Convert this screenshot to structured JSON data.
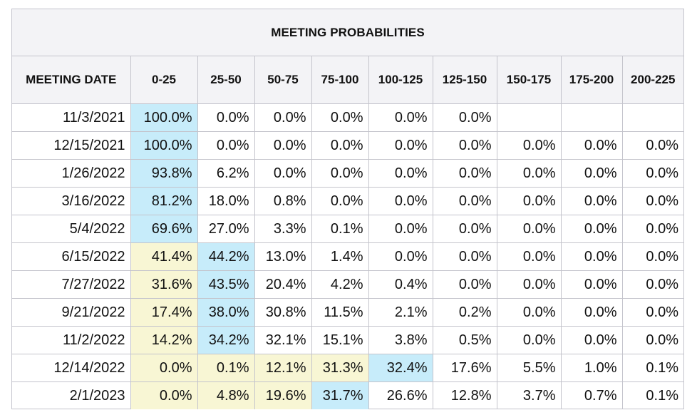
{
  "title": "MEETING PROBABILITIES",
  "colors": {
    "highlight_blue": "#c7ecfa",
    "highlight_yellow": "#f8f6d4",
    "header_background": "#f3f3f6"
  },
  "chart_data": {
    "type": "table",
    "title": "MEETING PROBABILITIES",
    "columns": [
      "MEETING DATE",
      "0-25",
      "25-50",
      "50-75",
      "75-100",
      "100-125",
      "125-150",
      "150-175",
      "175-200",
      "200-225"
    ],
    "rows": [
      {
        "date": "11/3/2021",
        "values": [
          "100.0%",
          "0.0%",
          "0.0%",
          "0.0%",
          "0.0%",
          "0.0%",
          "",
          "",
          ""
        ],
        "hl": [
          "b",
          "",
          "",
          "",
          "",
          "",
          "",
          "",
          ""
        ]
      },
      {
        "date": "12/15/2021",
        "values": [
          "100.0%",
          "0.0%",
          "0.0%",
          "0.0%",
          "0.0%",
          "0.0%",
          "0.0%",
          "0.0%",
          "0.0%"
        ],
        "hl": [
          "b",
          "",
          "",
          "",
          "",
          "",
          "",
          "",
          ""
        ]
      },
      {
        "date": "1/26/2022",
        "values": [
          "93.8%",
          "6.2%",
          "0.0%",
          "0.0%",
          "0.0%",
          "0.0%",
          "0.0%",
          "0.0%",
          "0.0%"
        ],
        "hl": [
          "b",
          "",
          "",
          "",
          "",
          "",
          "",
          "",
          ""
        ]
      },
      {
        "date": "3/16/2022",
        "values": [
          "81.2%",
          "18.0%",
          "0.8%",
          "0.0%",
          "0.0%",
          "0.0%",
          "0.0%",
          "0.0%",
          "0.0%"
        ],
        "hl": [
          "b",
          "",
          "",
          "",
          "",
          "",
          "",
          "",
          ""
        ]
      },
      {
        "date": "5/4/2022",
        "values": [
          "69.6%",
          "27.0%",
          "3.3%",
          "0.1%",
          "0.0%",
          "0.0%",
          "0.0%",
          "0.0%",
          "0.0%"
        ],
        "hl": [
          "b",
          "",
          "",
          "",
          "",
          "",
          "",
          "",
          ""
        ]
      },
      {
        "date": "6/15/2022",
        "values": [
          "41.4%",
          "44.2%",
          "13.0%",
          "1.4%",
          "0.0%",
          "0.0%",
          "0.0%",
          "0.0%",
          "0.0%"
        ],
        "hl": [
          "y",
          "b",
          "",
          "",
          "",
          "",
          "",
          "",
          ""
        ]
      },
      {
        "date": "7/27/2022",
        "values": [
          "31.6%",
          "43.5%",
          "20.4%",
          "4.2%",
          "0.4%",
          "0.0%",
          "0.0%",
          "0.0%",
          "0.0%"
        ],
        "hl": [
          "y",
          "b",
          "",
          "",
          "",
          "",
          "",
          "",
          ""
        ]
      },
      {
        "date": "9/21/2022",
        "values": [
          "17.4%",
          "38.0%",
          "30.8%",
          "11.5%",
          "2.1%",
          "0.2%",
          "0.0%",
          "0.0%",
          "0.0%"
        ],
        "hl": [
          "y",
          "b",
          "",
          "",
          "",
          "",
          "",
          "",
          ""
        ]
      },
      {
        "date": "11/2/2022",
        "values": [
          "14.2%",
          "34.2%",
          "32.1%",
          "15.1%",
          "3.8%",
          "0.5%",
          "0.0%",
          "0.0%",
          "0.0%"
        ],
        "hl": [
          "y",
          "b",
          "",
          "",
          "",
          "",
          "",
          "",
          ""
        ]
      },
      {
        "date": "12/14/2022",
        "values": [
          "0.0%",
          "0.1%",
          "12.1%",
          "31.3%",
          "32.4%",
          "17.6%",
          "5.5%",
          "1.0%",
          "0.1%"
        ],
        "hl": [
          "y",
          "y",
          "y",
          "y",
          "b",
          "",
          "",
          "",
          ""
        ]
      },
      {
        "date": "2/1/2023",
        "values": [
          "0.0%",
          "4.8%",
          "19.6%",
          "31.7%",
          "26.6%",
          "12.8%",
          "3.7%",
          "0.7%",
          "0.1%"
        ],
        "hl": [
          "y",
          "y",
          "y",
          "b",
          "",
          "",
          "",
          "",
          ""
        ]
      }
    ]
  }
}
